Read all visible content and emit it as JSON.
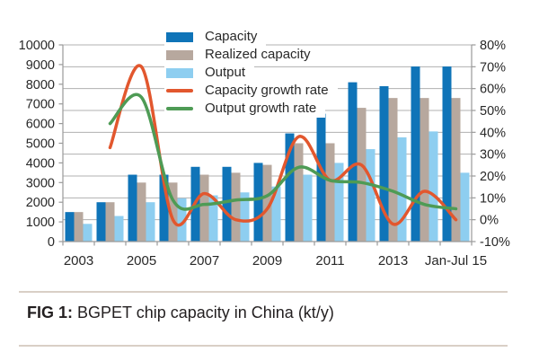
{
  "figure": {
    "caption_prefix": "FIG 1:",
    "caption_text": "BGPET chip capacity in China (kt/y)"
  },
  "chart_data": {
    "type": "bar+line combo",
    "categories": [
      "2003",
      "2004",
      "2005",
      "2006",
      "2007",
      "2008",
      "2009",
      "2010",
      "2011",
      "2012",
      "2013",
      "2014",
      "Jan-Jul 15"
    ],
    "x_axis": {
      "labeled_category_indices": [
        0,
        2,
        4,
        6,
        8,
        10,
        12
      ],
      "labels": [
        "2003",
        "2005",
        "2007",
        "2009",
        "2011",
        "2013",
        "Jan-Jul 15"
      ]
    },
    "left_axis": {
      "min": 0,
      "max": 10000,
      "step": 1000
    },
    "right_axis": {
      "min": -10,
      "max": 80,
      "step": 10,
      "suffix": "%"
    },
    "grid": "horizontal",
    "legend_position": "top-overlay",
    "series": [
      {
        "name": "Capacity",
        "type": "bar",
        "axis": "left",
        "color": "#0f74b8",
        "values": [
          1500,
          2000,
          3400,
          3400,
          3800,
          3800,
          4000,
          5500,
          6500,
          8100,
          7900,
          8900,
          8900
        ]
      },
      {
        "name": "Realized capacity",
        "type": "bar",
        "axis": "left",
        "color": "#b7a89e",
        "values": [
          1500,
          2000,
          3000,
          3000,
          3400,
          3500,
          3900,
          5000,
          5000,
          6800,
          7300,
          7300,
          7300
        ]
      },
      {
        "name": "Output",
        "type": "bar",
        "axis": "left",
        "color": "#8ecef0",
        "values": [
          900,
          1300,
          2000,
          2200,
          2350,
          2500,
          2800,
          3400,
          4000,
          4700,
          5300,
          5600,
          3500
        ]
      },
      {
        "name": "Capacity growth rate",
        "type": "line",
        "axis": "right",
        "color": "#e2572e",
        "values": [
          null,
          33,
          70,
          0,
          12,
          0,
          5,
          38,
          18,
          25,
          -2,
          13,
          0
        ]
      },
      {
        "name": "Output growth rate",
        "type": "line",
        "axis": "right",
        "color": "#4e9b55",
        "values": [
          null,
          44,
          56,
          9,
          7,
          9,
          11,
          24,
          18,
          17,
          13,
          7,
          5
        ]
      }
    ]
  },
  "colors": {
    "grid": "#b1b1b1",
    "axis": "#9a9a9a",
    "text": "#282828",
    "caption_rule": "#d9cfc6",
    "background": "#ffffff"
  }
}
